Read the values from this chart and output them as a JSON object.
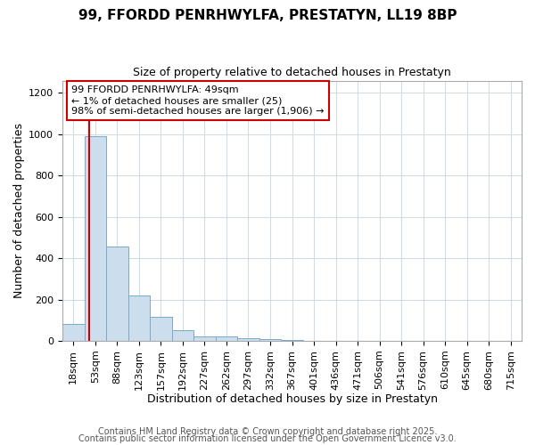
{
  "title_line1": "99, FFORDD PENRHWYLFA, PRESTATYN, LL19 8BP",
  "title_line2": "Size of property relative to detached houses in Prestatyn",
  "xlabel": "Distribution of detached houses by size in Prestatyn",
  "ylabel": "Number of detached properties",
  "bar_labels": [
    "18sqm",
    "53sqm",
    "88sqm",
    "123sqm",
    "157sqm",
    "192sqm",
    "227sqm",
    "262sqm",
    "297sqm",
    "332sqm",
    "367sqm",
    "401sqm",
    "436sqm",
    "471sqm",
    "506sqm",
    "541sqm",
    "576sqm",
    "610sqm",
    "645sqm",
    "680sqm",
    "715sqm"
  ],
  "bar_values": [
    80,
    990,
    455,
    220,
    115,
    50,
    20,
    20,
    15,
    8,
    5,
    0,
    0,
    0,
    0,
    0,
    0,
    0,
    0,
    0,
    0
  ],
  "bar_color": "#ccdded",
  "bar_edge_color": "#7aaac8",
  "property_line_x": 0.72,
  "property_line_color": "#cc0000",
  "annotation_text": "99 FFORDD PENRHWYLFA: 49sqm\n← 1% of detached houses are smaller (25)\n98% of semi-detached houses are larger (1,906) →",
  "annotation_box_color": "#ffffff",
  "annotation_box_edge": "#cc0000",
  "ylim": [
    0,
    1260
  ],
  "yticks": [
    0,
    200,
    400,
    600,
    800,
    1000,
    1200
  ],
  "footer_line1": "Contains HM Land Registry data © Crown copyright and database right 2025.",
  "footer_line2": "Contains public sector information licensed under the Open Government Licence v3.0.",
  "background_color": "#ffffff",
  "plot_bg_color": "#ffffff",
  "grid_color": "#d0dde8",
  "title_fontsize": 11,
  "subtitle_fontsize": 9,
  "xlabel_fontsize": 9,
  "ylabel_fontsize": 9,
  "tick_fontsize": 8,
  "annotation_fontsize": 8,
  "footer_fontsize": 7
}
